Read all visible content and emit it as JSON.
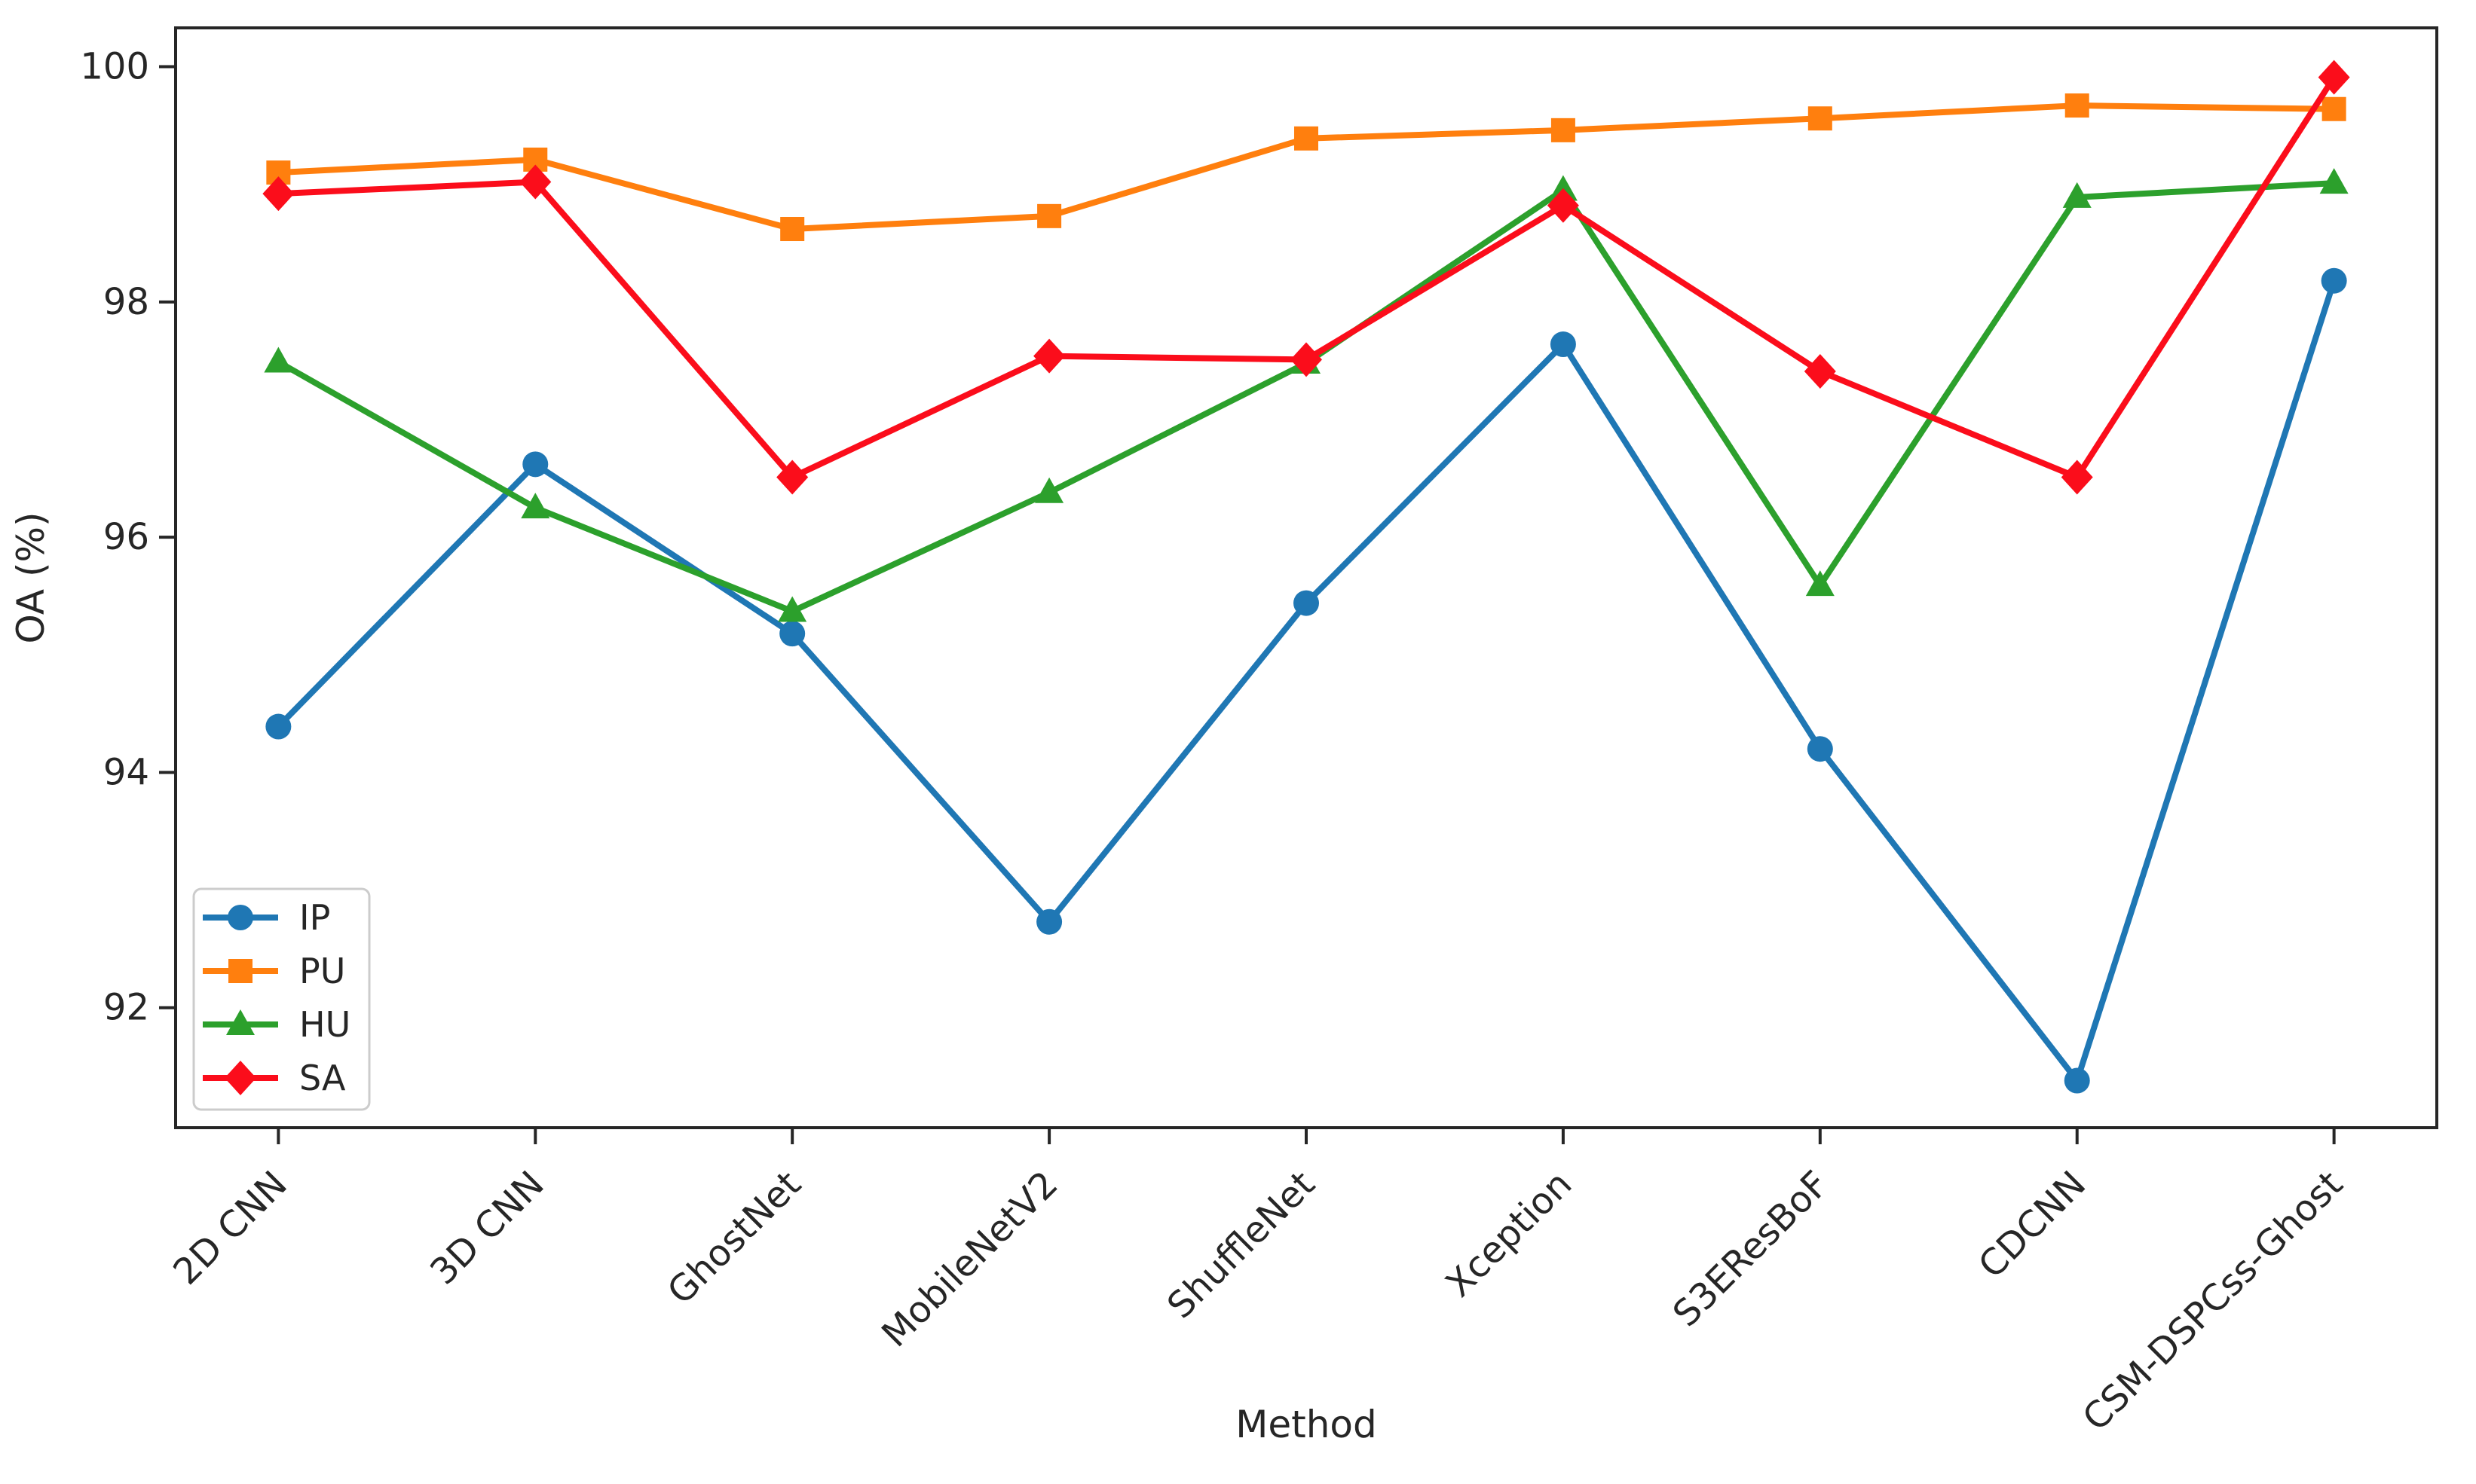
{
  "figure": {
    "background": "#ffffff",
    "spine_color": "#262626",
    "tick_color": "#262626",
    "legend_border_color": "#cccccc"
  },
  "chart_data": {
    "type": "line",
    "title": "",
    "xlabel": "Method",
    "ylabel": "OA (%)",
    "categories": [
      "2D CNN",
      "3D CNN",
      "GhostNet",
      "MobileNetV2",
      "ShuffleNet",
      "Xception",
      "S3EResBoF",
      "CDCNN",
      "CSM-DSPCss-Ghost"
    ],
    "series": [
      {
        "name": "IP",
        "marker": "circle",
        "color": "#1f77b4",
        "values": [
          94.39,
          96.62,
          95.18,
          92.73,
          95.44,
          97.64,
          94.2,
          91.38,
          98.18
        ]
      },
      {
        "name": "PU",
        "marker": "square",
        "color": "#ff7f0e",
        "values": [
          99.1,
          99.21,
          98.62,
          98.73,
          99.39,
          99.46,
          99.56,
          99.67,
          99.64
        ]
      },
      {
        "name": "HU",
        "marker": "triangle",
        "color": "#2ca02c",
        "values": [
          97.49,
          96.25,
          95.37,
          96.38,
          97.48,
          98.95,
          95.59,
          98.89,
          99.01
        ]
      },
      {
        "name": "SA",
        "marker": "diamond",
        "color": "#fb0d1b",
        "values": [
          98.92,
          99.02,
          96.51,
          97.54,
          97.51,
          98.82,
          97.41,
          96.51,
          99.91
        ]
      }
    ],
    "ylim": [
      90.98,
      100.33
    ],
    "yticks": [
      92,
      94,
      96,
      98,
      100
    ],
    "xtick_rotation_deg": 45,
    "legend_position": "lower-left",
    "grid": false
  }
}
